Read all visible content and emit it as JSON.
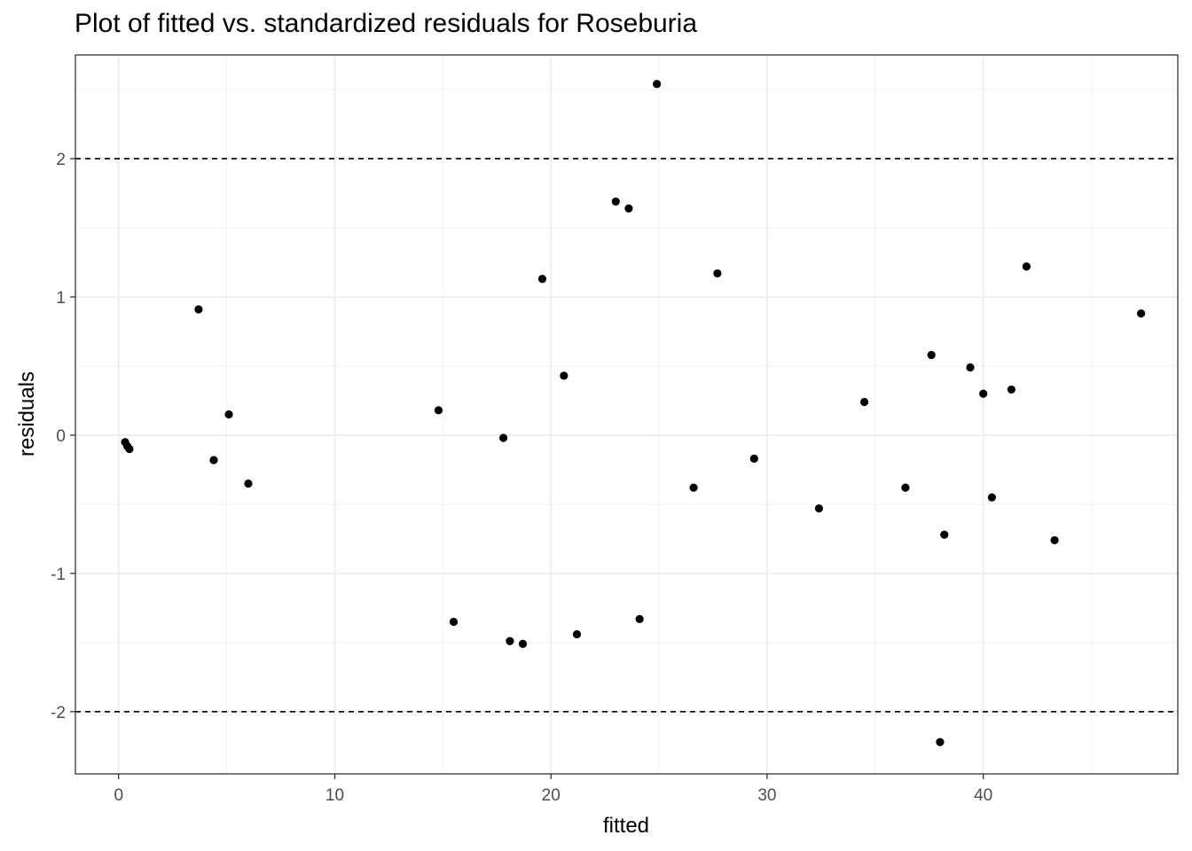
{
  "chart_data": {
    "type": "scatter",
    "title": "Plot of fitted vs. standardized residuals for Roseburia",
    "xlabel": "fitted",
    "ylabel": "residuals",
    "xlim": [
      -2.0,
      49.0
    ],
    "ylim": [
      -2.45,
      2.75
    ],
    "x_ticks": [
      0,
      10,
      20,
      30,
      40
    ],
    "y_ticks": [
      -2,
      -1,
      0,
      1,
      2
    ],
    "reference_lines": [
      2,
      -2
    ],
    "grid": true,
    "points": [
      {
        "x": 0.3,
        "y": -0.05
      },
      {
        "x": 0.4,
        "y": -0.08
      },
      {
        "x": 0.5,
        "y": -0.1
      },
      {
        "x": 3.7,
        "y": 0.91
      },
      {
        "x": 4.4,
        "y": -0.18
      },
      {
        "x": 5.1,
        "y": 0.15
      },
      {
        "x": 6.0,
        "y": -0.35
      },
      {
        "x": 14.8,
        "y": 0.18
      },
      {
        "x": 15.5,
        "y": -1.35
      },
      {
        "x": 17.8,
        "y": -0.02
      },
      {
        "x": 18.1,
        "y": -1.49
      },
      {
        "x": 18.7,
        "y": -1.51
      },
      {
        "x": 19.6,
        "y": 1.13
      },
      {
        "x": 20.6,
        "y": 0.43
      },
      {
        "x": 21.2,
        "y": -1.44
      },
      {
        "x": 23.0,
        "y": 1.69
      },
      {
        "x": 23.6,
        "y": 1.64
      },
      {
        "x": 24.1,
        "y": -1.33
      },
      {
        "x": 24.9,
        "y": 2.54
      },
      {
        "x": 26.6,
        "y": -0.38
      },
      {
        "x": 27.7,
        "y": 1.17
      },
      {
        "x": 29.4,
        "y": -0.17
      },
      {
        "x": 32.4,
        "y": -0.53
      },
      {
        "x": 34.5,
        "y": 0.24
      },
      {
        "x": 36.4,
        "y": -0.38
      },
      {
        "x": 37.6,
        "y": 0.58
      },
      {
        "x": 38.0,
        "y": -2.22
      },
      {
        "x": 38.2,
        "y": -0.72
      },
      {
        "x": 39.4,
        "y": 0.49
      },
      {
        "x": 40.0,
        "y": 0.3
      },
      {
        "x": 40.4,
        "y": -0.45
      },
      {
        "x": 41.3,
        "y": 0.33
      },
      {
        "x": 42.0,
        "y": 1.22
      },
      {
        "x": 43.3,
        "y": -0.76
      },
      {
        "x": 47.3,
        "y": 0.88
      }
    ]
  }
}
